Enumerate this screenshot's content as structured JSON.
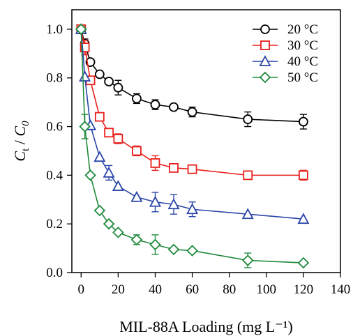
{
  "chart_data": {
    "type": "line",
    "xlabel": "MIL-88A Loading (mg L⁻¹)",
    "ylabel": "Ct / C0",
    "ylabel_parts": {
      "c": "C",
      "t": "t",
      "slash": " / ",
      "zero": "0"
    },
    "xlim": [
      -5,
      140
    ],
    "ylim": [
      0,
      1.08
    ],
    "x_ticks": [
      0,
      20,
      40,
      60,
      80,
      100,
      120,
      140
    ],
    "x_tick_labels": [
      "0",
      "20",
      "40",
      "60",
      "80",
      "100",
      "120",
      "140"
    ],
    "y_ticks": [
      0,
      0.2,
      0.4,
      0.6,
      0.8,
      1.0
    ],
    "y_tick_labels": [
      "0.0",
      "0.2",
      "0.4",
      "0.6",
      "0.8",
      "1.0"
    ],
    "grid": false,
    "legend_position": "top-right",
    "series": [
      {
        "name": "20 °C",
        "marker": "circle",
        "color": "#000000",
        "x": [
          0,
          2,
          5,
          10,
          15,
          20,
          30,
          40,
          50,
          60,
          90,
          120
        ],
        "y": [
          1.0,
          0.94,
          0.865,
          0.815,
          0.785,
          0.76,
          0.715,
          0.69,
          0.68,
          0.66,
          0.63,
          0.62
        ],
        "err": [
          0.0,
          0.02,
          0.0,
          0.0,
          0.0,
          0.03,
          0.02,
          0.02,
          0.0,
          0.02,
          0.03,
          0.03
        ]
      },
      {
        "name": "30 °C",
        "marker": "square",
        "color": "#e8201c",
        "x": [
          0,
          2,
          5,
          10,
          15,
          20,
          30,
          40,
          50,
          60,
          90,
          120
        ],
        "y": [
          1.0,
          0.925,
          0.79,
          0.64,
          0.575,
          0.55,
          0.5,
          0.45,
          0.43,
          0.425,
          0.4,
          0.4
        ],
        "err": [
          0.0,
          0.03,
          0.0,
          0.0,
          0.0,
          0.02,
          0.02,
          0.03,
          0.0,
          0.0,
          0.0,
          0.02
        ]
      },
      {
        "name": "40 °C",
        "marker": "triangle",
        "color": "#2a45a8",
        "x": [
          0,
          2,
          5,
          10,
          15,
          20,
          30,
          40,
          50,
          60,
          90,
          120
        ],
        "y": [
          1.0,
          0.805,
          0.605,
          0.475,
          0.41,
          0.355,
          0.31,
          0.29,
          0.28,
          0.26,
          0.24,
          0.22
        ],
        "err": [
          0.0,
          0.0,
          0.0,
          0.0,
          0.03,
          0.0,
          0.0,
          0.04,
          0.04,
          0.03,
          0.0,
          0.0
        ]
      },
      {
        "name": "50 °C",
        "marker": "diamond",
        "color": "#1f8a3c",
        "x": [
          0,
          2,
          5,
          10,
          15,
          20,
          30,
          40,
          50,
          60,
          90,
          120
        ],
        "y": [
          1.0,
          0.6,
          0.4,
          0.255,
          0.2,
          0.165,
          0.135,
          0.115,
          0.095,
          0.09,
          0.05,
          0.04
        ],
        "err": [
          0.0,
          0.05,
          0.0,
          0.0,
          0.0,
          0.0,
          0.02,
          0.04,
          0.0,
          0.0,
          0.03,
          0.0
        ]
      }
    ]
  }
}
